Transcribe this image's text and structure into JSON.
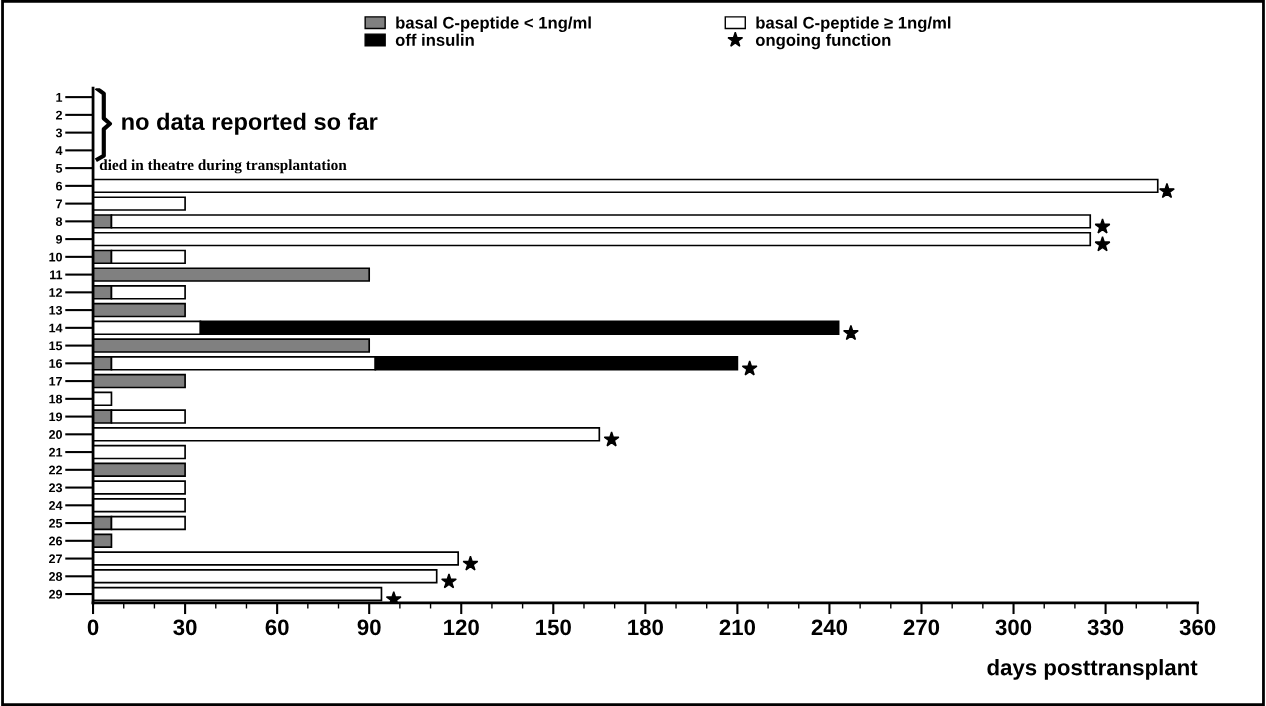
{
  "chart_data": {
    "type": "bar",
    "orientation": "horizontal",
    "stacked": true,
    "categories": [
      "1",
      "2",
      "3",
      "4",
      "5",
      "6",
      "7",
      "8",
      "9",
      "10",
      "11",
      "12",
      "13",
      "14",
      "15",
      "16",
      "17",
      "18",
      "19",
      "20",
      "21",
      "22",
      "23",
      "24",
      "25",
      "26",
      "27",
      "28",
      "29"
    ],
    "series": [
      {
        "name": "basal C-peptide < 1ng/ml",
        "color": "#808080",
        "values": [
          null,
          null,
          null,
          null,
          null,
          null,
          null,
          6,
          null,
          6,
          90,
          6,
          30,
          null,
          90,
          6,
          30,
          null,
          6,
          null,
          null,
          30,
          null,
          null,
          6,
          6,
          null,
          null,
          null
        ]
      },
      {
        "name": "basal C-peptide ≥ 1ng/ml",
        "color": "#ffffff",
        "values": [
          null,
          null,
          null,
          null,
          null,
          347,
          30,
          319,
          325,
          24,
          null,
          24,
          null,
          35,
          null,
          86,
          null,
          6,
          24,
          165,
          30,
          null,
          30,
          30,
          24,
          null,
          119,
          112,
          94
        ]
      },
      {
        "name": "off insulin",
        "color": "#000000",
        "values": [
          null,
          null,
          null,
          null,
          null,
          null,
          null,
          null,
          null,
          null,
          null,
          null,
          null,
          208,
          null,
          118,
          null,
          null,
          null,
          null,
          null,
          null,
          null,
          null,
          null,
          null,
          null,
          null,
          null
        ]
      },
      {
        "name": "ongoing function",
        "type": "scatter",
        "marker": "star",
        "color": "#000000",
        "values": [
          null,
          null,
          null,
          null,
          null,
          350,
          null,
          329,
          329,
          null,
          null,
          null,
          null,
          247,
          null,
          214,
          null,
          null,
          null,
          169,
          null,
          null,
          null,
          null,
          null,
          null,
          123,
          116,
          98
        ]
      }
    ],
    "xlabel": "days posttransplant",
    "xlim": [
      0,
      360
    ],
    "xticks": [
      0,
      30,
      60,
      90,
      120,
      150,
      180,
      210,
      240,
      270,
      300,
      330,
      360
    ],
    "legend": "top",
    "grid": false,
    "annotations": [
      "no data reported so far",
      "died in theatre during transplantation"
    ]
  }
}
